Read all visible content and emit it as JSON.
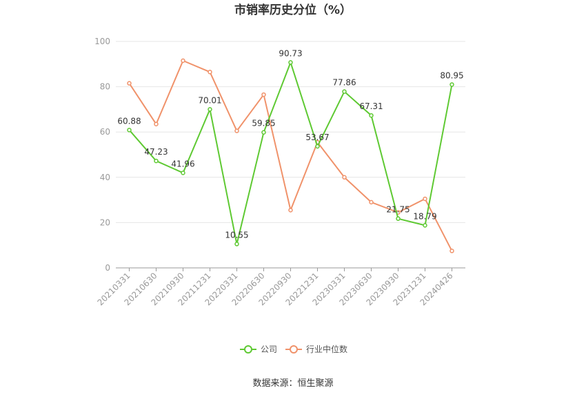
{
  "chart_data": {
    "type": "line",
    "title": "市销率历史分位（%）",
    "x": [
      "20210331",
      "20210630",
      "20210930",
      "20211231",
      "20220331",
      "20220630",
      "20220930",
      "20221231",
      "20230331",
      "20230630",
      "20230930",
      "20231231",
      "20240426"
    ],
    "ylim": [
      0,
      100
    ],
    "yticks": [
      0,
      20,
      40,
      60,
      80,
      100
    ],
    "grid": true,
    "legend_position": "bottom",
    "series": [
      {
        "name": "公司",
        "color": "#5ec932",
        "values": [
          60.88,
          47.23,
          41.96,
          70.01,
          10.55,
          59.85,
          90.73,
          53.67,
          77.86,
          67.31,
          21.75,
          18.79,
          80.95
        ],
        "labels": [
          "60.88",
          "47.23",
          "41.96",
          "70.01",
          "10.55",
          "59.85",
          "90.73",
          "53.67",
          "77.86",
          "67.31",
          "21.75",
          "18.79",
          "80.95"
        ]
      },
      {
        "name": "行业中位数",
        "color": "#f0926a",
        "values": [
          81.5,
          63.5,
          91.5,
          86.5,
          60.5,
          76.5,
          25.5,
          55.5,
          40.0,
          29.0,
          24.5,
          30.5,
          7.5
        ]
      }
    ]
  },
  "source": "数据来源：恒生聚源"
}
